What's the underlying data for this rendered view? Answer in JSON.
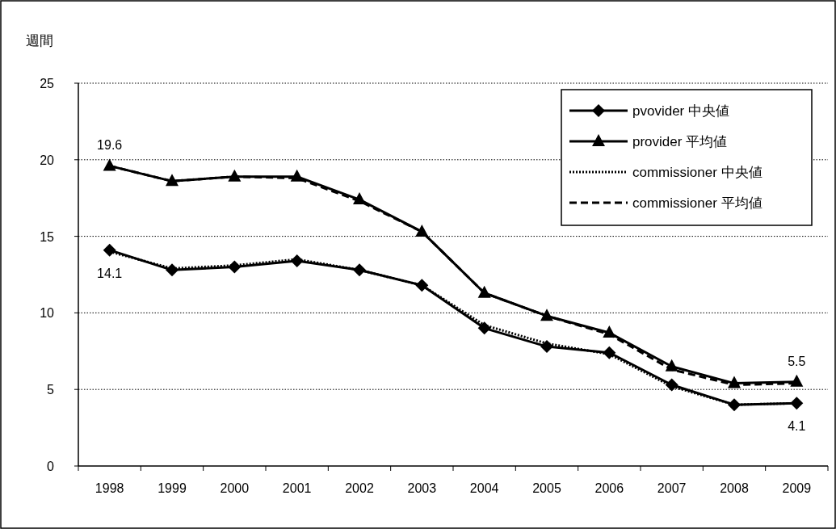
{
  "chart_data": {
    "type": "line",
    "ylabel": "週間",
    "categories": [
      "1998",
      "1999",
      "2000",
      "2001",
      "2002",
      "2003",
      "2004",
      "2005",
      "2006",
      "2007",
      "2008",
      "2009"
    ],
    "ylim": [
      0,
      25
    ],
    "yticks": [
      0,
      5,
      10,
      15,
      20,
      25
    ],
    "grid": "y",
    "legend": "top right",
    "series": [
      {
        "name": "pvovider 中央値",
        "color": "#000000",
        "marker": "diamond",
        "line_style": "solid",
        "values": [
          14.1,
          12.8,
          13.0,
          13.4,
          12.8,
          11.8,
          9.0,
          7.8,
          7.4,
          5.3,
          4.0,
          4.1
        ]
      },
      {
        "name": "provider 平均値",
        "color": "#000000",
        "marker": "triangle",
        "line_style": "solid",
        "values": [
          19.6,
          18.6,
          18.9,
          18.9,
          17.4,
          15.3,
          11.3,
          9.8,
          8.7,
          6.5,
          5.4,
          5.5
        ]
      },
      {
        "name": "commissioner 中央値",
        "color": "#000000",
        "marker": "none",
        "line_style": "dotted",
        "values": [
          14.0,
          12.9,
          13.1,
          13.5,
          12.8,
          11.8,
          9.2,
          8.0,
          7.3,
          5.2,
          4.0,
          4.1
        ]
      },
      {
        "name": "commissioner 平均値",
        "color": "#000000",
        "marker": "none",
        "line_style": "dashed",
        "values": [
          19.6,
          18.6,
          18.9,
          18.8,
          17.3,
          15.3,
          11.3,
          9.8,
          8.6,
          6.3,
          5.3,
          5.4
        ]
      }
    ],
    "annotations": [
      {
        "text": "19.6",
        "x": "1998",
        "y": 19.6
      },
      {
        "text": "14.1",
        "x": "1998",
        "y": 14.1
      },
      {
        "text": "5.5",
        "x": "2009",
        "y": 5.5
      },
      {
        "text": "4.1",
        "x": "2009",
        "y": 4.1
      }
    ]
  }
}
